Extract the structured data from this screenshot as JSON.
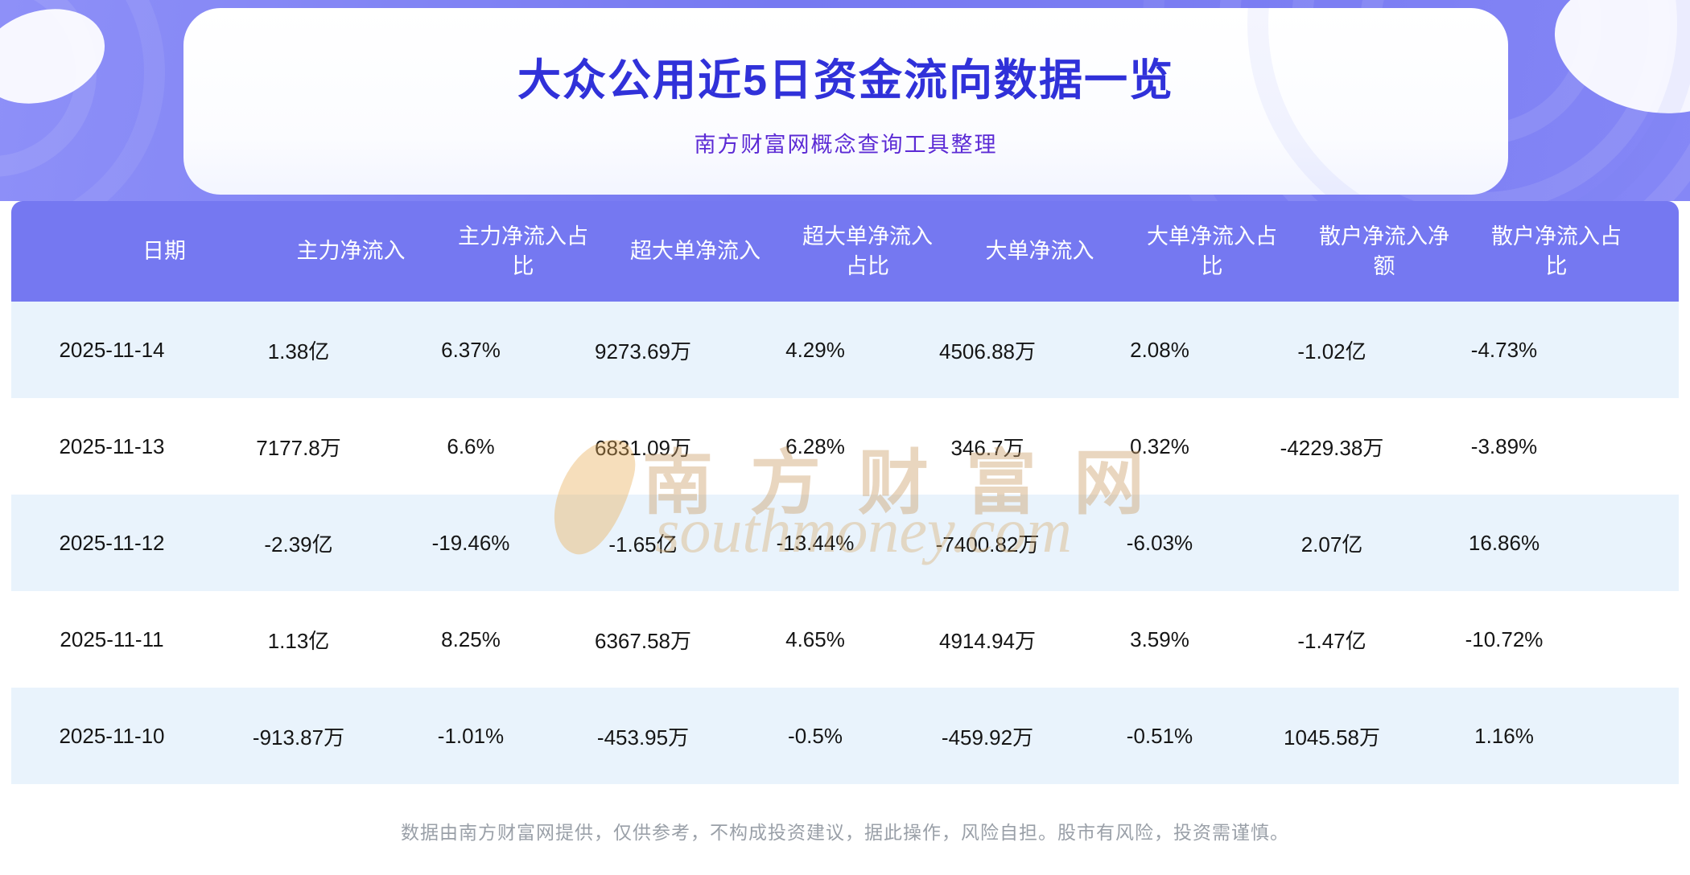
{
  "page": {
    "title": "大众公用近5日资金流向数据一览",
    "subtitle": "南方财富网概念查询工具整理"
  },
  "chart_data": {
    "type": "table",
    "title": "大众公用近5日资金流向数据一览",
    "subtitle": "南方财富网概念查询工具整理",
    "columns": [
      "日期",
      "主力净流入",
      "主力净流入占比",
      "超大单净流入",
      "超大单净流入占比",
      "大单净流入",
      "大单净流入占比",
      "散户净流入净额",
      "散户净流入占比"
    ],
    "rows": [
      [
        "2025-11-14",
        "1.38亿",
        "6.37%",
        "9273.69万",
        "4.29%",
        "4506.88万",
        "2.08%",
        "-1.02亿",
        "-4.73%"
      ],
      [
        "2025-11-13",
        "7177.8万",
        "6.6%",
        "6831.09万",
        "6.28%",
        "346.7万",
        "0.32%",
        "-4229.38万",
        "-3.89%"
      ],
      [
        "2025-11-12",
        "-2.39亿",
        "-19.46%",
        "-1.65亿",
        "-13.44%",
        "-7400.82万",
        "-6.03%",
        "2.07亿",
        "16.86%"
      ],
      [
        "2025-11-11",
        "1.13亿",
        "8.25%",
        "6367.58万",
        "4.65%",
        "4914.94万",
        "3.59%",
        "-1.47亿",
        "-10.72%"
      ],
      [
        "2025-11-10",
        "-913.87万",
        "-1.01%",
        "-453.95万",
        "-0.5%",
        "-459.92万",
        "-0.51%",
        "1045.58万",
        "1.16%"
      ]
    ]
  },
  "watermark": {
    "cn": "南方财富网",
    "en": "southmoney.com"
  },
  "footer": {
    "disclaimer": "数据由南方财富网提供，仅供参考，不构成投资建议，据此操作，风险自担。股市有风险，投资需谨慎。"
  },
  "colors": {
    "banner_purple": "#7a7cf3",
    "table_header_purple": "#7578f1",
    "row_alt_blue": "#e9f3fc",
    "title_blue": "#3031d9",
    "subtitle_purple": "#5c2bd5",
    "watermark_gold": "#cb9e67",
    "footer_gray": "#9aa0a8"
  }
}
